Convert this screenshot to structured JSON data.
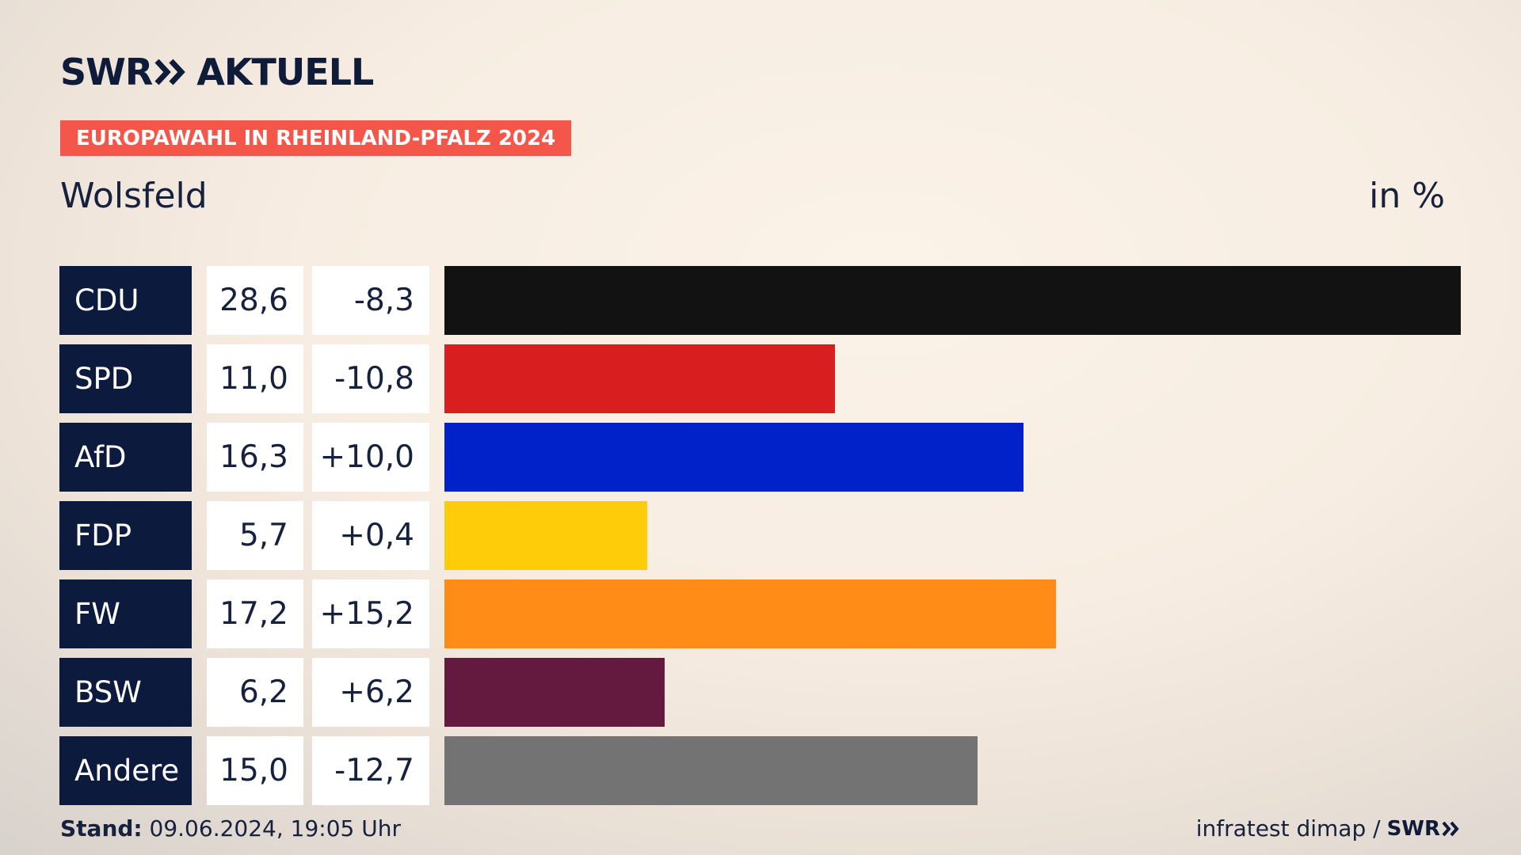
{
  "header": {
    "logo_text_1": "SWR",
    "logo_text_2": "AKTUELL",
    "badge": "EUROPAWAHL IN RHEINLAND-PFALZ 2024",
    "region": "Wolsfeld",
    "unit": "in %"
  },
  "colors": {
    "CDU": "#121212",
    "SPD": "#d81e1e",
    "AfD": "#0022c8",
    "FDP": "#ffcc0a",
    "FW": "#ff8c16",
    "BSW": "#641a3e",
    "Andere": "#737373"
  },
  "chart_data": {
    "type": "bar",
    "orientation": "horizontal",
    "categories": [
      "CDU",
      "SPD",
      "AfD",
      "FDP",
      "FW",
      "BSW",
      "Andere"
    ],
    "values": [
      28.6,
      11.0,
      16.3,
      5.7,
      17.2,
      6.2,
      15.0
    ],
    "value_labels": [
      "28,6",
      "11,0",
      "16,3",
      "5,7",
      "17,2",
      "6,2",
      "15,0"
    ],
    "change_labels": [
      "-8,3",
      "-10,8",
      "+10,0",
      "+0,4",
      "+15,2",
      "+6,2",
      "-12,7"
    ],
    "changes": [
      -8.3,
      -10.8,
      10.0,
      0.4,
      15.2,
      6.2,
      -12.7
    ],
    "xlim": [
      0,
      28.6
    ]
  },
  "footer": {
    "stand_label": "Stand:",
    "stand_value": "09.06.2024, 19:05 Uhr",
    "source": "infratest dimap /",
    "source_logo": "SWR"
  }
}
